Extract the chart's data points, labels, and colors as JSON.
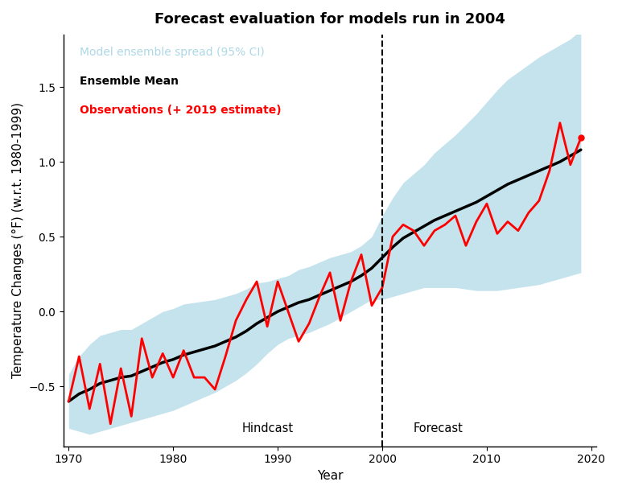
{
  "title": "Forecast evaluation for models run in 2004",
  "xlabel": "Year",
  "ylabel": "Temperature Changes (°F) (w.r.t. 1980-1999)",
  "xlim": [
    1969.5,
    2020.5
  ],
  "ylim": [
    -0.9,
    1.85
  ],
  "yticks": [
    -0.5,
    0.0,
    0.5,
    1.0,
    1.5
  ],
  "xticks": [
    1970,
    1980,
    1990,
    2000,
    2010,
    2020
  ],
  "dashed_line_x": 2000,
  "hindcast_label": "Hindcast",
  "forecast_label": "Forecast",
  "hindcast_x": 1991.5,
  "forecast_x": 2003.0,
  "ci_color": "#add8e6",
  "ci_alpha": 0.7,
  "ensemble_mean_color": "black",
  "obs_color": "red",
  "obs_lw": 2.0,
  "mean_lw": 2.5,
  "years": [
    1970,
    1971,
    1972,
    1973,
    1974,
    1975,
    1976,
    1977,
    1978,
    1979,
    1980,
    1981,
    1982,
    1983,
    1984,
    1985,
    1986,
    1987,
    1988,
    1989,
    1990,
    1991,
    1992,
    1993,
    1994,
    1995,
    1996,
    1997,
    1998,
    1999,
    2000,
    2001,
    2002,
    2003,
    2004,
    2005,
    2006,
    2007,
    2008,
    2009,
    2010,
    2011,
    2012,
    2013,
    2014,
    2015,
    2016,
    2017,
    2018,
    2019
  ],
  "ensemble_mean": [
    -0.6,
    -0.55,
    -0.52,
    -0.48,
    -0.46,
    -0.44,
    -0.43,
    -0.4,
    -0.37,
    -0.34,
    -0.32,
    -0.29,
    -0.27,
    -0.25,
    -0.23,
    -0.2,
    -0.17,
    -0.13,
    -0.08,
    -0.04,
    0.0,
    0.03,
    0.06,
    0.08,
    0.11,
    0.14,
    0.17,
    0.2,
    0.24,
    0.29,
    0.36,
    0.43,
    0.49,
    0.53,
    0.57,
    0.61,
    0.64,
    0.67,
    0.7,
    0.73,
    0.77,
    0.81,
    0.85,
    0.88,
    0.91,
    0.94,
    0.97,
    1.0,
    1.04,
    1.08
  ],
  "ci_lower": [
    -0.78,
    -0.8,
    -0.82,
    -0.8,
    -0.78,
    -0.76,
    -0.74,
    -0.72,
    -0.7,
    -0.68,
    -0.66,
    -0.63,
    -0.6,
    -0.57,
    -0.54,
    -0.5,
    -0.46,
    -0.41,
    -0.35,
    -0.28,
    -0.22,
    -0.18,
    -0.16,
    -0.14,
    -0.11,
    -0.08,
    -0.04,
    0.0,
    0.04,
    0.08,
    0.08,
    0.1,
    0.12,
    0.14,
    0.16,
    0.16,
    0.16,
    0.16,
    0.15,
    0.14,
    0.14,
    0.14,
    0.15,
    0.16,
    0.17,
    0.18,
    0.2,
    0.22,
    0.24,
    0.26
  ],
  "ci_upper": [
    -0.42,
    -0.3,
    -0.22,
    -0.16,
    -0.14,
    -0.12,
    -0.12,
    -0.08,
    -0.04,
    0.0,
    0.02,
    0.05,
    0.06,
    0.07,
    0.08,
    0.1,
    0.12,
    0.15,
    0.19,
    0.2,
    0.22,
    0.24,
    0.28,
    0.3,
    0.33,
    0.36,
    0.38,
    0.4,
    0.44,
    0.5,
    0.64,
    0.76,
    0.86,
    0.92,
    0.98,
    1.06,
    1.12,
    1.18,
    1.25,
    1.32,
    1.4,
    1.48,
    1.55,
    1.6,
    1.65,
    1.7,
    1.74,
    1.78,
    1.82,
    1.88
  ],
  "obs_years": [
    1970,
    1971,
    1972,
    1973,
    1974,
    1975,
    1976,
    1977,
    1978,
    1979,
    1980,
    1981,
    1982,
    1983,
    1984,
    1985,
    1986,
    1987,
    1988,
    1989,
    1990,
    1991,
    1992,
    1993,
    1994,
    1995,
    1996,
    1997,
    1998,
    1999,
    2000,
    2001,
    2002,
    2003,
    2004,
    2005,
    2006,
    2007,
    2008,
    2009,
    2010,
    2011,
    2012,
    2013,
    2014,
    2015,
    2016,
    2017,
    2018,
    2019
  ],
  "observations": [
    -0.6,
    -0.3,
    -0.65,
    -0.35,
    -0.75,
    -0.38,
    -0.7,
    -0.18,
    -0.44,
    -0.28,
    -0.44,
    -0.26,
    -0.44,
    -0.44,
    -0.52,
    -0.3,
    -0.06,
    0.08,
    0.2,
    -0.1,
    0.2,
    0.0,
    -0.2,
    -0.08,
    0.1,
    0.26,
    -0.06,
    0.2,
    0.38,
    0.04,
    0.16,
    0.5,
    0.58,
    0.54,
    0.44,
    0.54,
    0.58,
    0.64,
    0.44,
    0.6,
    0.72,
    0.52,
    0.6,
    0.54,
    0.66,
    0.74,
    0.94,
    1.26,
    0.98,
    1.16
  ],
  "obs_dot_year": 2019,
  "obs_dot_value": 1.16,
  "background_color": "white",
  "panel_background": "white",
  "title_fontsize": 13,
  "label_fontsize": 11,
  "tick_fontsize": 10,
  "legend_fontsize": 10,
  "legend_ci_color": "#add8e6",
  "legend_mean_color": "black",
  "legend_obs_color": "red"
}
